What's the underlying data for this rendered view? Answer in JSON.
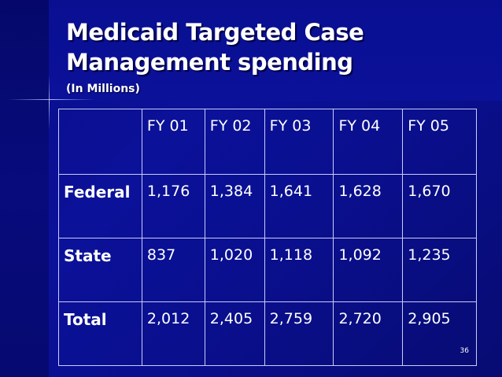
{
  "slide": {
    "title_line1": "Medicaid Targeted Case",
    "title_line2": "Management spending",
    "subtitle": "(In Millions)",
    "page_number": "36"
  },
  "table": {
    "corner": "",
    "headers": [
      "FY 01",
      "FY 02",
      "FY 03",
      "FY 04",
      "FY 05"
    ],
    "rows": [
      {
        "label": "Federal",
        "values": [
          "1,176",
          "1,384",
          "1,641",
          "1,628",
          "1,670"
        ]
      },
      {
        "label": "State",
        "values": [
          "837",
          "1,020",
          "1,118",
          "1,092",
          "1,235"
        ]
      },
      {
        "label": "Total",
        "values": [
          "2,012",
          "2,405",
          "2,759",
          "2,720",
          "2,905"
        ]
      }
    ]
  },
  "colors": {
    "background": "#0b1199",
    "text": "#ffffff",
    "grid": "#c9cdf5"
  }
}
